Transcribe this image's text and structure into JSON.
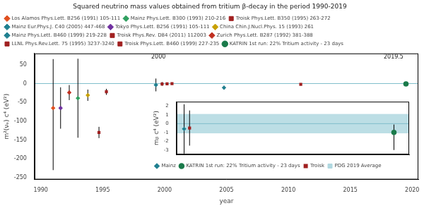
{
  "chart_data": [
    {
      "type": "scatter",
      "title": "Squared neutrino mass values obtained from tritium β-decay in the period 1990-2019",
      "xlabel": "year",
      "ylabel": "m²(νₑ) c⁴ (eV²)",
      "xlim": [
        1989.5,
        2020.5
      ],
      "xticks": [
        1990,
        1995,
        2000,
        2005,
        2010,
        2015,
        2020
      ],
      "ylim": [
        -255,
        80
      ],
      "yticks": [
        -250,
        -200,
        -150,
        -100,
        -50,
        0,
        50
      ],
      "grid": false,
      "legend": "top",
      "series": [
        {
          "x": [
            1991.0,
            1991.6,
            1992.3,
            1993.0,
            1993.8,
            1994.7,
            1995.3,
            1999.3,
            1999.8,
            2000.2,
            2000.6,
            2004.8,
            2011.0,
            2019.5
          ],
          "values": [
            -65,
            -65,
            -24,
            -39,
            -31,
            -130,
            -22,
            -3.7,
            -1.0,
            -0.6,
            -0.2,
            -11,
            -2.3,
            -1.0
          ],
          "err_up": [
            130,
            55,
            20,
            105,
            15,
            15,
            8,
            17,
            5,
            3,
            2,
            5,
            2,
            3.3
          ],
          "err_dn": [
            165,
            55,
            20,
            105,
            15,
            15,
            8,
            17,
            5,
            3,
            2,
            5,
            2,
            3.3
          ],
          "colors": [
            "#e05020",
            "#7030a0",
            "#c03020",
            "#30a060",
            "#c8a000",
            "#a02020",
            "#a02020",
            "#208090",
            "#a02020",
            "#a02020",
            "#a02020",
            "#208090",
            "#a02020",
            "#1a7a4a"
          ],
          "markers": [
            "diamond",
            "diamond",
            "diamond",
            "diamond",
            "diamond",
            "square",
            "square",
            "diamond",
            "square",
            "square",
            "square",
            "diamond",
            "square",
            "circle"
          ]
        }
      ],
      "legend_entries": [
        {
          "name": "Los Alamos Phys.Lett. B256 (1991) 105-111",
          "color": "#e05020",
          "marker": "diamond"
        },
        {
          "name": "Mainz Phys.Lett. B300 (1993) 210-216",
          "color": "#30a060",
          "marker": "diamond"
        },
        {
          "name": "Troisk Phys.Lett. B350 (1995) 263-272",
          "color": "#a02020",
          "marker": "square"
        },
        {
          "name": "Mainz Eur.Phys.J. C40 (2005) 447-468",
          "color": "#208090",
          "marker": "diamond"
        },
        {
          "name": "Tokyo Phys.Lett. B256 (1991) 105-111",
          "color": "#7030a0",
          "marker": "diamond"
        },
        {
          "name": "China Chin.J.Nucl.Phys. 15 (1993) 261",
          "color": "#c8a000",
          "marker": "diamond"
        },
        {
          "name": "Mainz Phys.Lett. B460 (1999) 219-228",
          "color": "#208090",
          "marker": "diamond"
        },
        {
          "name": "Troisk Phys.Rev. D84 (2011) 112003",
          "color": "#a02020",
          "marker": "square"
        },
        {
          "name": "Zurich Phys.Lett. B287 (1992) 381-388",
          "color": "#c03020",
          "marker": "diamond"
        },
        {
          "name": "LLNL Phys.Rev.Lett. 75 (1995) 3237-3240",
          "color": "#a02020",
          "marker": "square"
        },
        {
          "name": "Troisk Phys.Lett. B460 (1999) 227-235",
          "color": "#a02020",
          "marker": "square"
        },
        {
          "name": "KATRIN 1st run: 22% Tritium activity - 23 days",
          "color": "#1a7a4a",
          "marker": "circle"
        }
      ],
      "hlines": [
        {
          "y": 0,
          "color": "#80bfcc"
        }
      ],
      "annotations": [
        {
          "x": 1999.5,
          "y": 62,
          "text": "2000"
        },
        {
          "x": 2018.5,
          "y": 62,
          "text": "2019.5"
        }
      ]
    },
    {
      "type": "scatter",
      "ylabel": "mᵦ c⁴ (eV²)",
      "xlim": [
        1998.8,
        2020.2
      ],
      "xticks": [],
      "ylim": [
        -3.5,
        2.5
      ],
      "yticks": [
        -3,
        -2,
        -1,
        0,
        1,
        2
      ],
      "grid": false,
      "legend": "bottom",
      "tick_labels": "y",
      "series": [
        {
          "name": "Mainz",
          "color": "#208090",
          "marker": "diamond",
          "x": [
            1999.5
          ],
          "values": [
            -0.6
          ],
          "err_up": [
            2.8
          ],
          "err_dn": [
            2.8
          ]
        },
        {
          "name": "KATRIN 1st run: 22% Tritium activity - 23 days",
          "color": "#1a7a4a",
          "marker": "circle",
          "x": [
            2018.8
          ],
          "values": [
            -1.0
          ],
          "err_up": [
            0.9
          ],
          "err_dn": [
            2.0
          ]
        },
        {
          "name": "Troisk",
          "color": "#a02020",
          "marker": "square",
          "x": [
            2000.0
          ],
          "values": [
            -0.5
          ],
          "err_up": [
            2.0
          ],
          "err_dn": [
            2.0
          ]
        },
        {
          "name": "PDG 2019 Average",
          "type": "band",
          "color": "#b0d8e0",
          "y_range": [
            -1.1,
            1.1
          ]
        }
      ],
      "hlines": [
        {
          "y": 0,
          "color": "#80bfcc"
        }
      ]
    }
  ]
}
